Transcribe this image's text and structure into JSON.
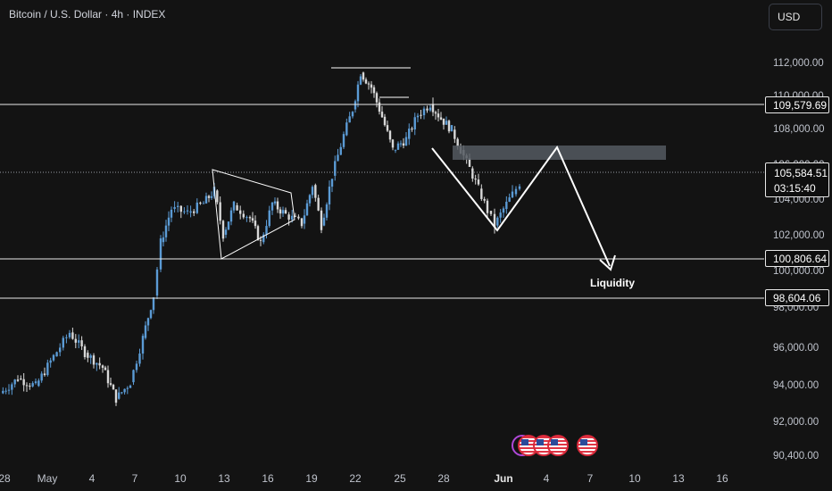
{
  "header": {
    "title": "Bitcoin / U.S. Dollar · 4h · INDEX"
  },
  "currency_button": {
    "label": "USD"
  },
  "y_axis": {
    "labels": [
      "112,000.00",
      "110,000.00",
      "108,000.00",
      "106,000.00",
      "104,000.00",
      "102,000.00",
      "100,000.00",
      "98,000.00",
      "96,000.00",
      "94,000.00",
      "92,000.00",
      "90,400.00"
    ]
  },
  "x_axis": {
    "labels": [
      "28",
      "May",
      "4",
      "7",
      "10",
      "13",
      "16",
      "19",
      "22",
      "25",
      "28",
      "Jun",
      "4",
      "7",
      "10",
      "13",
      "16"
    ]
  },
  "levels": [
    {
      "label": "109,579.69"
    },
    {
      "label": "100,806.64"
    },
    {
      "label": "98,604.06"
    }
  ],
  "current_price": {
    "price": "105,584.51",
    "countdown": "03:15:40"
  },
  "annotations": {
    "liquidity": "Liquidity"
  },
  "events": [
    {
      "icon": "calendar-event-icon"
    },
    {
      "icon": "us-flag-event-icon"
    },
    {
      "icon": "us-flag-event-icon"
    },
    {
      "icon": "us-flag-event-icon"
    },
    {
      "icon": "us-flag-event-icon"
    }
  ],
  "colors": {
    "background": "#131313",
    "candle_up": "#5b9bd5",
    "candle_down": "#d8d8d8",
    "drawing": "#ffffff",
    "zone": "#555a62"
  },
  "chart_data": {
    "type": "candlestick",
    "title": "Bitcoin / U.S. Dollar · 4h · INDEX",
    "ylim": [
      90400,
      113500
    ],
    "y_ticks": [
      112000,
      110000,
      108000,
      106000,
      104000,
      102000,
      100000,
      98000,
      96000,
      94000,
      92000,
      90400
    ],
    "x_ticks": [
      "28",
      "May",
      "4",
      "7",
      "10",
      "13",
      "16",
      "19",
      "22",
      "25",
      "28",
      "Jun",
      "4",
      "7",
      "10",
      "13",
      "16"
    ],
    "horizontal_levels": [
      109579.69,
      100806.64,
      98604.06
    ],
    "last_price": 105584.51,
    "close_path": [
      [
        "28",
        94800
      ],
      [
        "May",
        96900
      ],
      [
        "4",
        96200
      ],
      [
        "7",
        94200
      ],
      [
        "10",
        103300
      ],
      [
        "13",
        104700
      ],
      [
        "16",
        103900
      ],
      [
        "19",
        103800
      ],
      [
        "22",
        111700
      ],
      [
        "25",
        107700
      ],
      [
        "28",
        108300
      ],
      [
        "Jun",
        104100
      ],
      [
        "Jun",
        105584.51
      ]
    ]
  }
}
